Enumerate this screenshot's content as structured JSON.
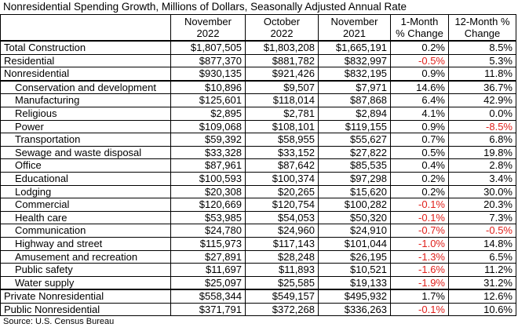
{
  "title": "Nonresidential Spending Growth, Millions of Dollars, Seasonally Adjusted Annual Rate",
  "table": {
    "header": [
      [
        "November",
        "2022"
      ],
      [
        "October",
        "2022"
      ],
      [
        "November",
        "2021"
      ],
      [
        "1-Month",
        "% Change"
      ],
      [
        "12-Month %",
        "Change"
      ]
    ],
    "rows": [
      [
        "Total Construction",
        "$1,807,505",
        "$1,803,208",
        "$1,665,191",
        "0.2%",
        "8.5%"
      ],
      [
        "Residential",
        "$877,370",
        "$881,782",
        "$832,997",
        "-0.5%",
        "5.3%"
      ],
      [
        "Nonresidential",
        "$930,135",
        "$921,426",
        "$832,195",
        "0.9%",
        "11.8%"
      ],
      [
        "Conservation and development",
        "$10,896",
        "$9,507",
        "$7,971",
        "14.6%",
        "36.7%"
      ],
      [
        "Manufacturing",
        "$125,601",
        "$118,014",
        "$87,868",
        "6.4%",
        "42.9%"
      ],
      [
        "Religious",
        "$2,895",
        "$2,781",
        "$2,894",
        "4.1%",
        "0.0%"
      ],
      [
        "Power",
        "$109,068",
        "$108,101",
        "$119,155",
        "0.9%",
        "-8.5%"
      ],
      [
        "Transportation",
        "$59,392",
        "$58,955",
        "$55,627",
        "0.7%",
        "6.8%"
      ],
      [
        "Sewage and waste disposal",
        "$33,328",
        "$33,152",
        "$27,822",
        "0.5%",
        "19.8%"
      ],
      [
        "Office",
        "$87,961",
        "$87,642",
        "$85,535",
        "0.4%",
        "2.8%"
      ],
      [
        "Educational",
        "$100,593",
        "$100,374",
        "$97,298",
        "0.2%",
        "3.4%"
      ],
      [
        "Lodging",
        "$20,308",
        "$20,265",
        "$15,620",
        "0.2%",
        "30.0%"
      ],
      [
        "Commercial",
        "$120,669",
        "$120,754",
        "$100,282",
        "-0.1%",
        "20.3%"
      ],
      [
        "Health care",
        "$53,985",
        "$54,053",
        "$50,320",
        "-0.1%",
        "7.3%"
      ],
      [
        "Communication",
        "$24,780",
        "$24,960",
        "$24,910",
        "-0.7%",
        "-0.5%"
      ],
      [
        "Highway and street",
        "$115,973",
        "$117,143",
        "$101,044",
        "-1.0%",
        "14.8%"
      ],
      [
        "Amusement and recreation",
        "$27,891",
        "$28,248",
        "$26,195",
        "-1.3%",
        "6.5%"
      ],
      [
        "Public safety",
        "$11,697",
        "$11,893",
        "$10,521",
        "-1.6%",
        "11.2%"
      ],
      [
        "Water supply",
        "$25,097",
        "$25,585",
        "$19,133",
        "-1.9%",
        "31.2%"
      ],
      [
        "Private Nonresidential",
        "$558,344",
        "$549,157",
        "$495,932",
        "1.7%",
        "12.6%"
      ],
      [
        "Public Nonresidential",
        "$371,791",
        "$372,268",
        "$336,263",
        "-0.1%",
        "10.6%"
      ]
    ]
  },
  "source": "Source: U.S. Census Bureau"
}
